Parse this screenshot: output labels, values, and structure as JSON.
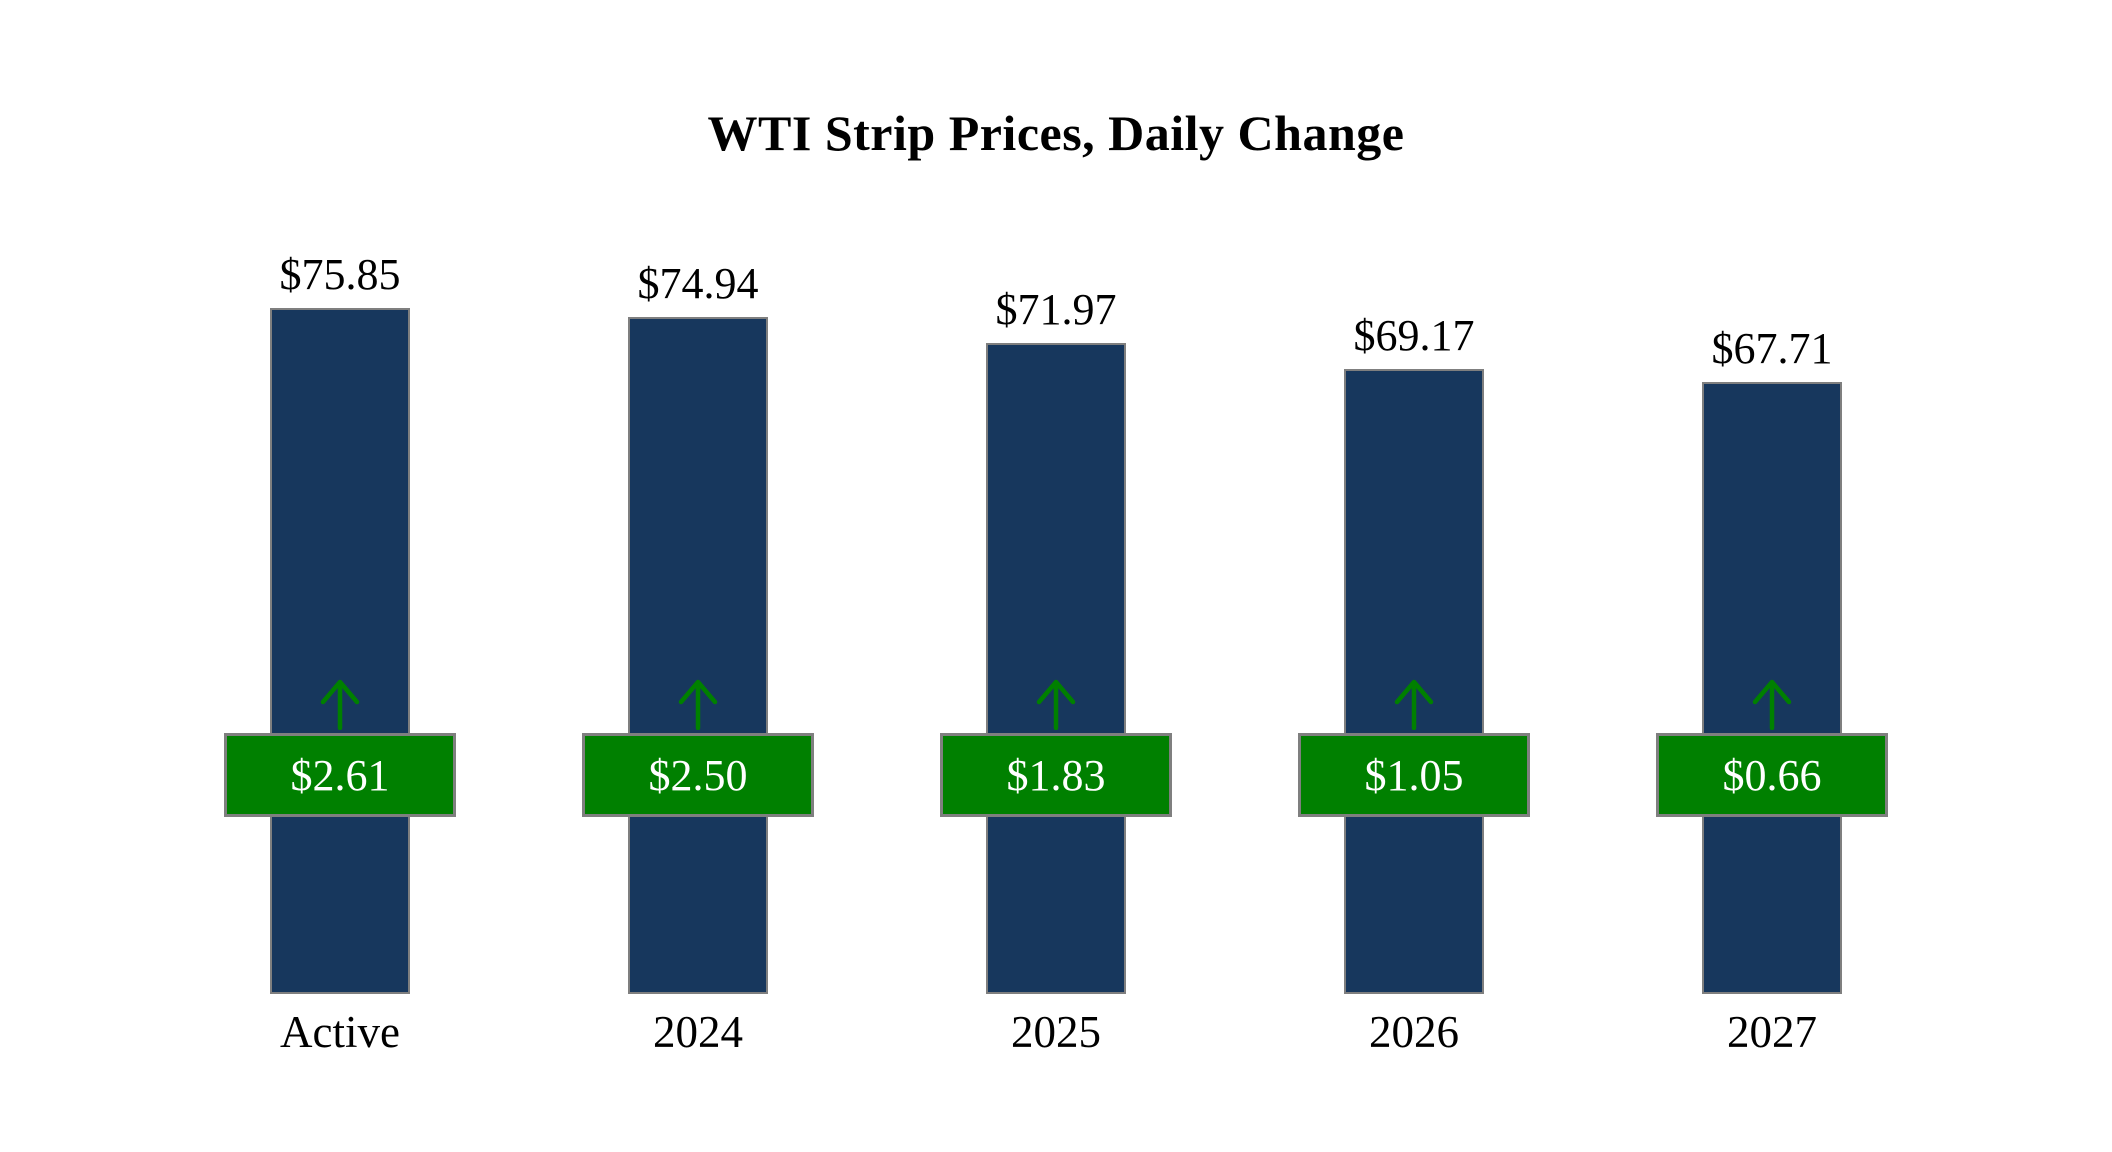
{
  "title": "WTI Strip Prices, Daily Change",
  "chart_data": {
    "type": "bar",
    "title": "WTI Strip Prices, Daily Change",
    "categories": [
      "Active",
      "2024",
      "2025",
      "2026",
      "2027"
    ],
    "values": [
      75.85,
      74.94,
      71.97,
      69.17,
      67.71
    ],
    "value_labels": [
      "$75.85",
      "$74.94",
      "$71.97",
      "$69.17",
      "$67.71"
    ],
    "changes": [
      2.61,
      2.5,
      1.83,
      1.05,
      0.66
    ],
    "change_labels": [
      "$2.61",
      "$2.50",
      "$1.83",
      "$1.05",
      "$0.66"
    ],
    "change_direction": "up",
    "xlabel": "",
    "ylabel": "",
    "ylim": [
      0,
      80
    ],
    "grid": false,
    "legend": "none",
    "colors": {
      "bar": "#17375d",
      "bar_border": "#7f7f7f",
      "badge": "#008000",
      "badge_border": "#7f7f7f",
      "badge_text": "#ffffff",
      "arrow": "#008000",
      "text": "#000000",
      "background": "#ffffff"
    }
  }
}
